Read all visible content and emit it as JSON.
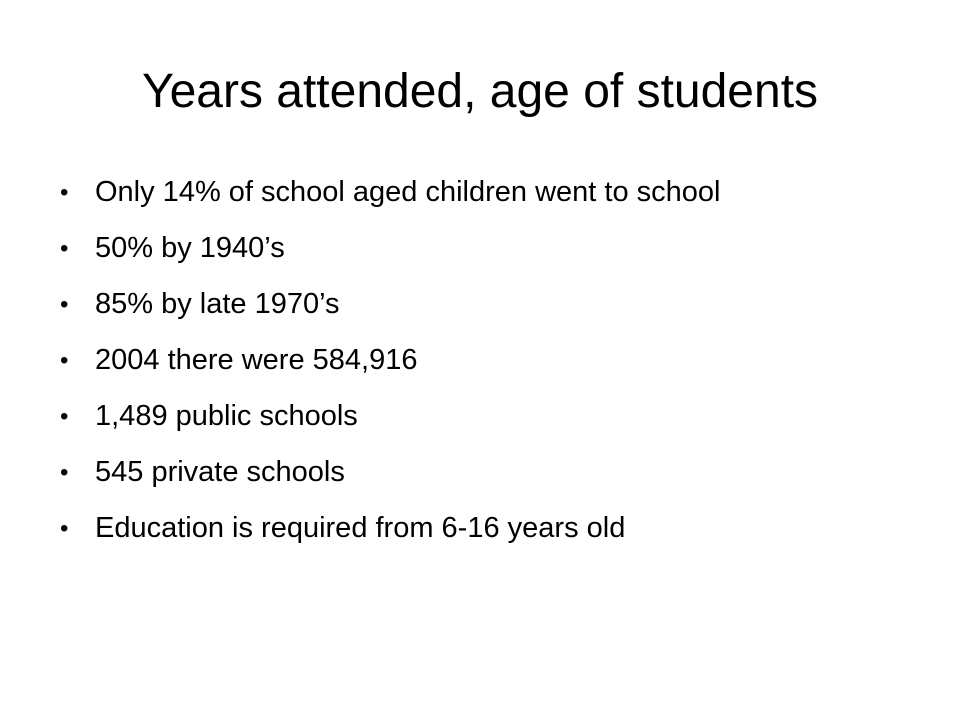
{
  "slide": {
    "title": "Years attended, age of students",
    "bullet_glyph": "•",
    "bullets": [
      "Only 14% of school aged children went to school",
      "50% by 1940’s",
      "85% by late 1970’s",
      "2004 there were 584,916",
      "1,489 public schools",
      "545 private schools",
      "Education is required from 6-16 years old"
    ]
  }
}
